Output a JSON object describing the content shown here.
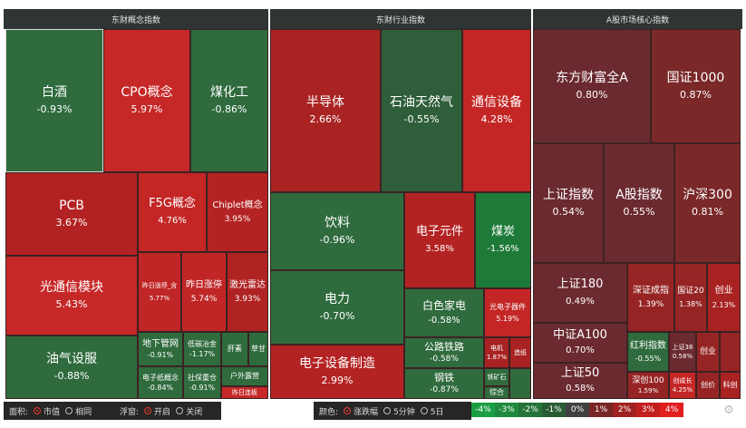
{
  "panels": {
    "concept": "东财概念指数",
    "industry": "东财行业指数",
    "core": "A股市场核心指数"
  },
  "tiles": [
    {
      "name": "白酒",
      "value": "-0.93%"
    },
    {
      "name": "CPO概念",
      "value": "5.97%"
    },
    {
      "name": "煤化工",
      "value": "-0.86%"
    },
    {
      "name": "PCB",
      "value": "3.67%"
    },
    {
      "name": "F5G概念",
      "value": "4.76%"
    },
    {
      "name": "Chiplet概念",
      "value": "3.95%"
    },
    {
      "name": "光通信模块",
      "value": "5.43%"
    },
    {
      "name": "昨日涨停_含",
      "value": "5.77%"
    },
    {
      "name": "昨日涨停",
      "value": "5.74%"
    },
    {
      "name": "激光雷达",
      "value": "3.93%"
    },
    {
      "name": "油气设服",
      "value": "-0.88%"
    },
    {
      "name": "地下管网",
      "value": "-0.91%"
    },
    {
      "name": "低碳冶金",
      "value": "-1.17%"
    },
    {
      "name": "肝素",
      "value": ""
    },
    {
      "name": "草甘",
      "value": ""
    },
    {
      "name": "电子纸概念",
      "value": "-0.84%"
    },
    {
      "name": "社保重仓",
      "value": "-0.91%"
    },
    {
      "name": "户外露营",
      "value": ""
    },
    {
      "name": "昨日连板",
      "value": ""
    },
    {
      "name": "半导体",
      "value": "2.66%"
    },
    {
      "name": "石油天然气",
      "value": "-0.55%"
    },
    {
      "name": "通信设备",
      "value": "4.28%"
    },
    {
      "name": "饮料",
      "value": "-0.96%"
    },
    {
      "name": "电子元件",
      "value": "3.58%"
    },
    {
      "name": "煤炭",
      "value": "-1.56%"
    },
    {
      "name": "电力",
      "value": "-0.70%"
    },
    {
      "name": "白色家电",
      "value": "-0.58%"
    },
    {
      "name": "光电子器件",
      "value": "5.19%"
    },
    {
      "name": "电子设备制造",
      "value": "2.99%"
    },
    {
      "name": "公路铁路",
      "value": "-0.58%"
    },
    {
      "name": "电机",
      "value": "1.87%"
    },
    {
      "name": "造纸",
      "value": ""
    },
    {
      "name": "钢铁",
      "value": "-0.87%"
    },
    {
      "name": "铁矿石",
      "value": ""
    },
    {
      "name": "综合",
      "value": ""
    },
    {
      "name": "东方财富全A",
      "value": "0.80%"
    },
    {
      "name": "国证1000",
      "value": "0.87%"
    },
    {
      "name": "上证指数",
      "value": "0.54%"
    },
    {
      "name": "A股指数",
      "value": "0.55%"
    },
    {
      "name": "沪深300",
      "value": "0.81%"
    },
    {
      "name": "上证180",
      "value": "0.49%"
    },
    {
      "name": "深证成指",
      "value": "1.39%"
    },
    {
      "name": "国证20",
      "value": "1.38%"
    },
    {
      "name": "创业",
      "value": "2.13%"
    },
    {
      "name": "中证A100",
      "value": "0.70%"
    },
    {
      "name": "红利指数",
      "value": "-0.55%"
    },
    {
      "name": "上证38",
      "value": "0.58%"
    },
    {
      "name": "创业",
      "value": ""
    },
    {
      "name": "上证50",
      "value": "0.58%"
    },
    {
      "name": "深创100",
      "value": "1.59%"
    },
    {
      "name": "创成长",
      "value": "4.25%"
    },
    {
      "name": "创价",
      "value": ""
    },
    {
      "name": "科创",
      "value": ""
    }
  ],
  "toolbar": {
    "area_label": "面积:",
    "area_options": [
      "市值",
      "相同"
    ],
    "float_label": "浮窗:",
    "float_options": [
      "开启",
      "关闭"
    ],
    "color_label": "颜色:",
    "color_options": [
      "涨跌幅",
      "5分钟",
      "5日"
    ]
  },
  "scale": [
    {
      "label": "-4%",
      "color": "#1a9e43"
    },
    {
      "label": "-3%",
      "color": "#1f8a3e"
    },
    {
      "label": "-2%",
      "color": "#247338"
    },
    {
      "label": "-1%",
      "color": "#2a5c34"
    },
    {
      "label": "0%",
      "color": "#414141"
    },
    {
      "label": "1%",
      "color": "#7a2626"
    },
    {
      "label": "2%",
      "color": "#a02222"
    },
    {
      "label": "3%",
      "color": "#c21f1f"
    },
    {
      "label": "4%",
      "color": "#e01f1f"
    }
  ]
}
